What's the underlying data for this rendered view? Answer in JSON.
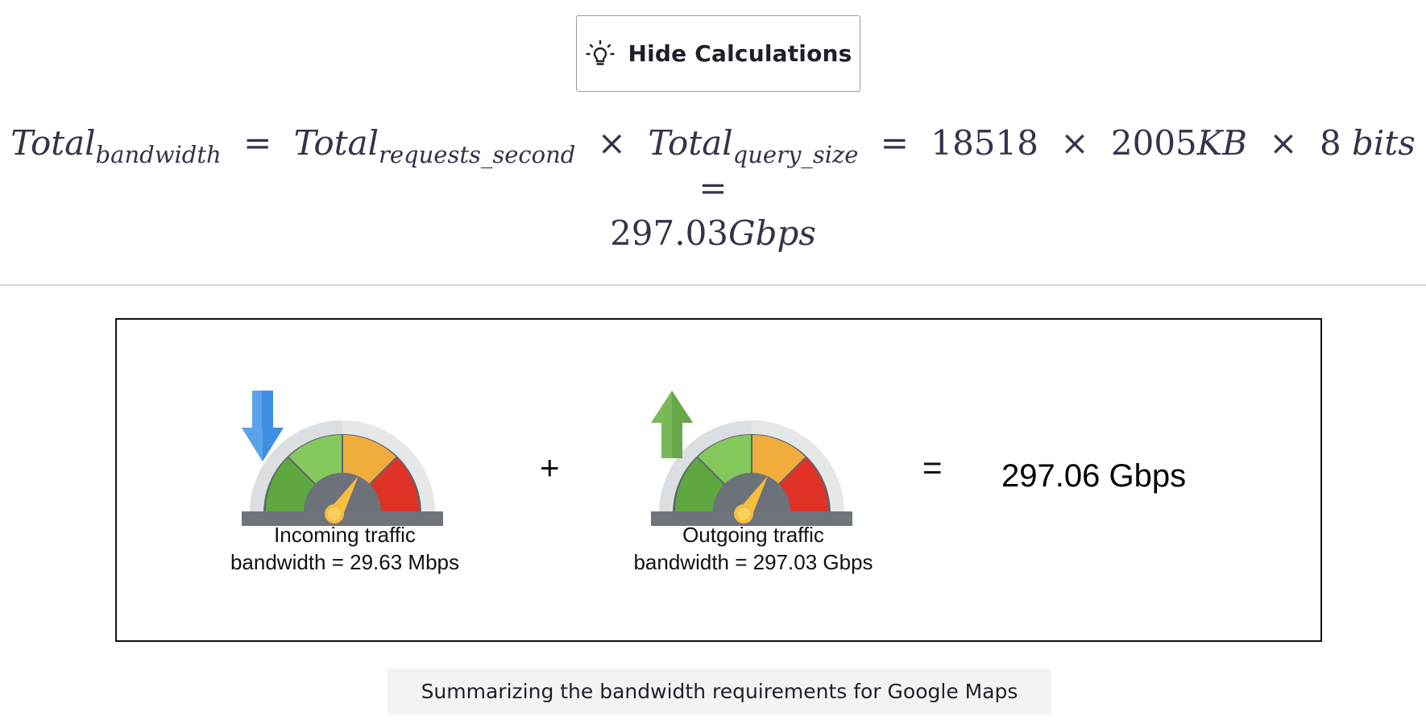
{
  "toggle": {
    "label": "Hide Calculations",
    "icon": "lightbulb-icon"
  },
  "formula": {
    "lhs_var": "Total",
    "lhs_sub": "bandwidth",
    "eq": "=",
    "t1_var": "Total",
    "t1_sub": "requests_second",
    "times": "×",
    "t2_var": "Total",
    "t2_sub": "query_size",
    "n1": "18518",
    "n2": "2005",
    "n2_unit": "KB",
    "n3": "8",
    "n3_unit": "bits",
    "result_num": "297.03",
    "result_unit": "Gbps"
  },
  "figure": {
    "incoming": {
      "line1": "Incoming traffic",
      "line2": "bandwidth = 29.63 Mbps",
      "icon": "download-speedometer-icon"
    },
    "plus": "+",
    "outgoing": {
      "line1": "Outgoing traffic",
      "line2": "bandwidth = 297.03 Gbps",
      "icon": "upload-speedometer-icon"
    },
    "equals": "=",
    "total": "297.06 Gbps"
  },
  "caption": "Summarizing the bandwidth requirements for Google Maps",
  "colors": {
    "gauge_green_dark": "#5fa83f",
    "gauge_green_light": "#85c95c",
    "gauge_orange": "#f0ad3c",
    "gauge_red": "#e03126",
    "arrow_blue": "#3f8fe0",
    "arrow_green": "#7ab85a",
    "needle": "#f6bd3f"
  }
}
